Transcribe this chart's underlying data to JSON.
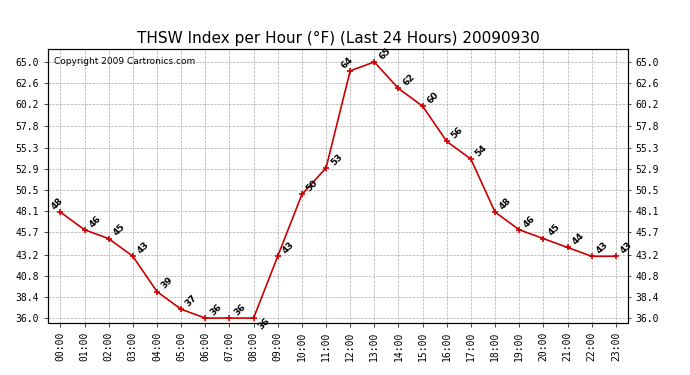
{
  "title": "THSW Index per Hour (°F) (Last 24 Hours) 20090930",
  "copyright": "Copyright 2009 Cartronics.com",
  "hours": [
    0,
    1,
    2,
    3,
    4,
    5,
    6,
    7,
    8,
    9,
    10,
    11,
    12,
    13,
    14,
    15,
    16,
    17,
    18,
    19,
    20,
    21,
    22,
    23
  ],
  "values": [
    48,
    46,
    45,
    43,
    39,
    37,
    36,
    36,
    36,
    43,
    50,
    53,
    64,
    65,
    62,
    60,
    56,
    54,
    48,
    46,
    45,
    44,
    43,
    43
  ],
  "xlabels": [
    "00:00",
    "01:00",
    "02:00",
    "03:00",
    "04:00",
    "05:00",
    "06:00",
    "07:00",
    "08:00",
    "09:00",
    "10:00",
    "11:00",
    "12:00",
    "13:00",
    "14:00",
    "15:00",
    "16:00",
    "17:00",
    "18:00",
    "19:00",
    "20:00",
    "21:00",
    "22:00",
    "23:00"
  ],
  "yticks": [
    36.0,
    38.4,
    40.8,
    43.2,
    45.7,
    48.1,
    50.5,
    52.9,
    55.3,
    57.8,
    60.2,
    62.6,
    65.0
  ],
  "ylim": [
    35.5,
    66.5
  ],
  "line_color": "#cc0000",
  "grid_color": "#aaaaaa",
  "bg_color": "#ffffff",
  "title_fontsize": 11,
  "label_fontsize": 7,
  "annot_fontsize": 6.5,
  "copyright_fontsize": 6.5
}
